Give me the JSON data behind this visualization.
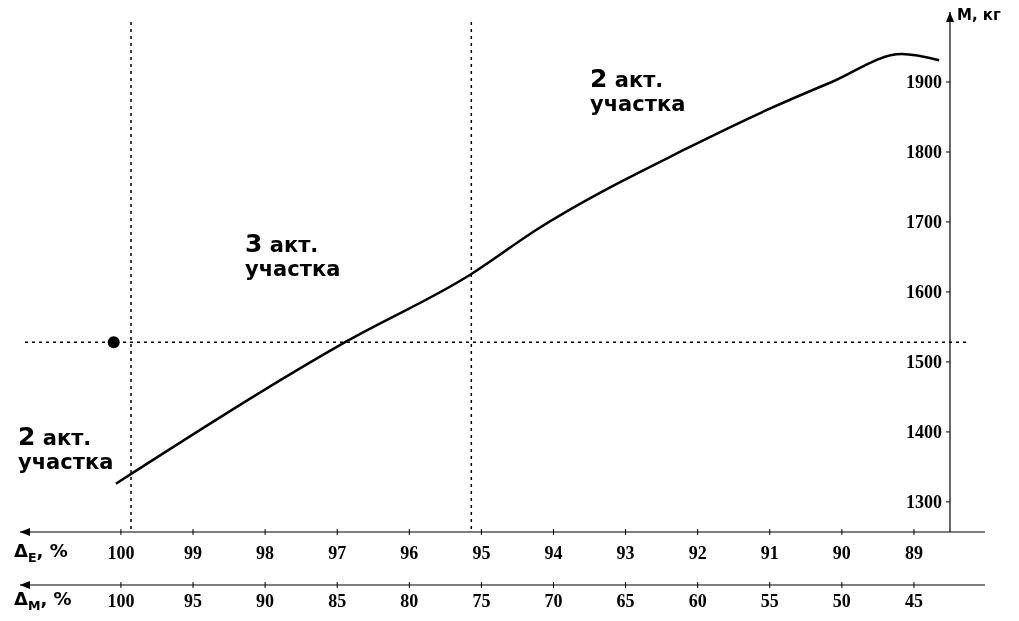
{
  "chart_data": {
    "type": "line",
    "xlabel": "Δ$_{E}$, %",
    "x2label": "Δ$_{M}$, %",
    "ylabel": "M, кг",
    "xlim": [
      101.4,
      88.5
    ],
    "xticks": [
      100,
      99,
      98,
      97,
      96,
      95,
      94,
      93,
      92,
      91,
      90,
      89
    ],
    "x2lim": [
      107,
      42.5
    ],
    "x2ticks": [
      100,
      95,
      90,
      85,
      80,
      75,
      70,
      65,
      60,
      55,
      50,
      45
    ],
    "ylim": [
      1257,
      2000
    ],
    "yticks": [
      1300,
      1400,
      1500,
      1600,
      1700,
      1800,
      1900
    ],
    "series": [
      {
        "type": "line",
        "color": "#000000",
        "x": [
          100.07,
          96.86,
          95.15,
          94.22,
          92.15,
          91.04,
          90.14,
          89.17,
          88.65
        ],
        "values": [
          1326,
          1530,
          1625,
          1690,
          1805,
          1860,
          1900,
          1940,
          1931
        ]
      },
      {
        "type": "scatter",
        "color": "#000000",
        "marker": "circle",
        "x": [
          100.1
        ],
        "values": [
          1528
        ]
      }
    ],
    "ref_lines": [
      {
        "axis": "x",
        "value": 99.86,
        "line_style": "dotted"
      },
      {
        "axis": "x",
        "value": 95.14,
        "line_style": "dotted"
      },
      {
        "axis": "y",
        "value": 1528,
        "line_style": "dotted"
      }
    ],
    "annotations": [
      "2 акт. участка",
      "3 акт. участка",
      "2 акт. участка"
    ],
    "grid": false
  }
}
